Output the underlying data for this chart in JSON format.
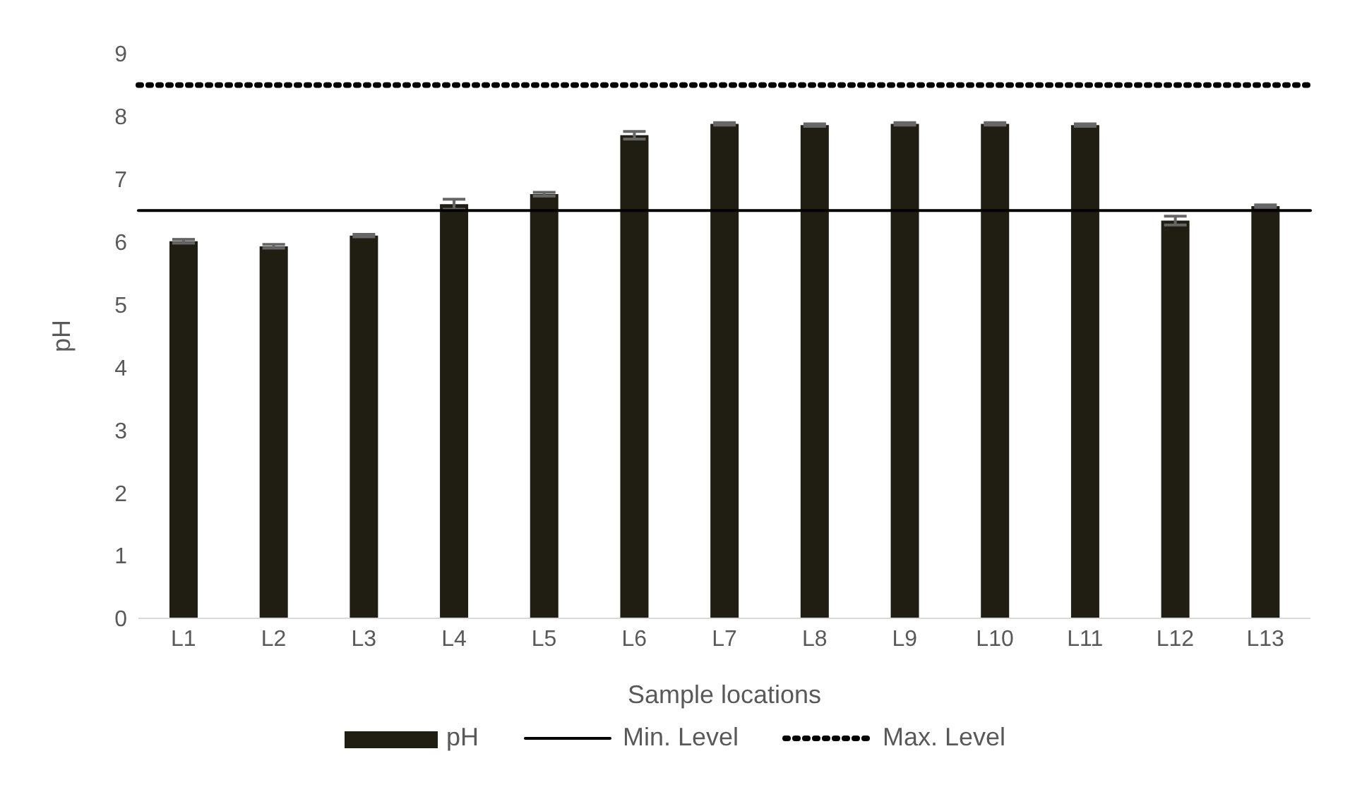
{
  "chart_data": {
    "type": "bar",
    "xlabel": "Sample locations",
    "ylabel": "pH",
    "categories": [
      "L1",
      "L2",
      "L3",
      "L4",
      "L5",
      "L6",
      "L7",
      "L8",
      "L9",
      "L10",
      "L11",
      "L12",
      "L13"
    ],
    "series": [
      {
        "name": "pH",
        "color": "#201e12",
        "values": [
          6.01,
          5.93,
          6.1,
          6.6,
          6.76,
          7.7,
          7.88,
          7.86,
          7.88,
          7.88,
          7.86,
          6.34,
          6.57
        ],
        "errors": [
          0.03,
          0.03,
          0.02,
          0.08,
          0.03,
          0.06,
          0.02,
          0.02,
          0.02,
          0.02,
          0.02,
          0.07,
          0.02
        ]
      }
    ],
    "ref_lines": [
      {
        "axis": "y",
        "value": 6.5,
        "label": "Min. Level",
        "color": "#000000",
        "line_style": "solid"
      },
      {
        "axis": "y",
        "value": 8.5,
        "label": "Max. Level",
        "color": "#000000",
        "line_style": "dotted"
      }
    ],
    "ylim": [
      0,
      9
    ],
    "yticks": [
      0,
      1,
      2,
      3,
      4,
      5,
      6,
      7,
      8,
      9
    ],
    "grid": false,
    "legend": "bottom"
  }
}
